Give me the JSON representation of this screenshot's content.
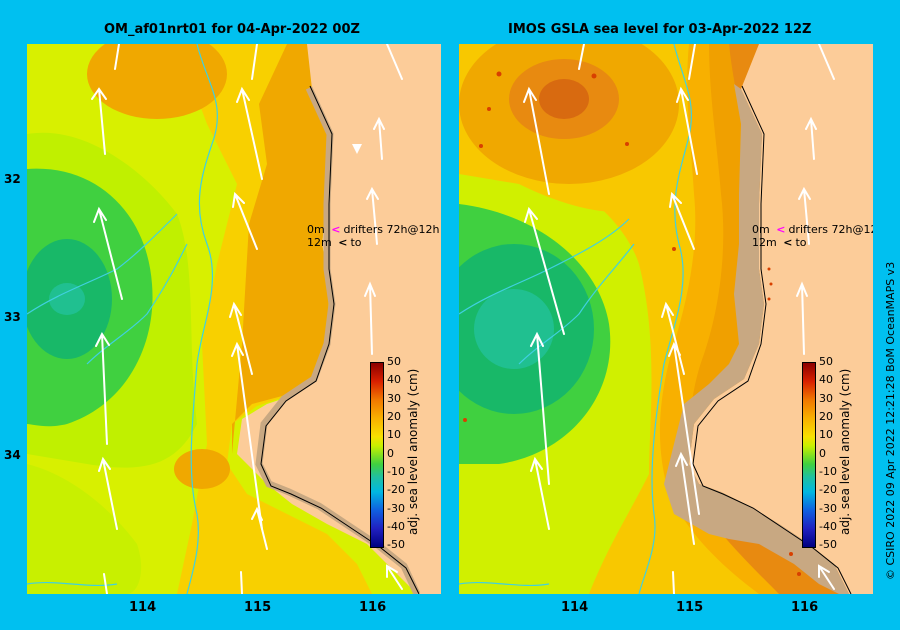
{
  "titles": {
    "left": "OM_af01nrt01 for 04-Apr-2022 00Z",
    "right": "IMOS GSLA sea level  for 03-Apr-2022 12Z"
  },
  "lat_labels": [
    "32",
    "33",
    "34"
  ],
  "lon_labels": [
    "114",
    "115",
    "116"
  ],
  "legend": {
    "row1_depth": "0m",
    "row1_marker": "<",
    "row1_text": "drifters 72h@12h",
    "row2_depth": "12m",
    "row2_marker": "<",
    "row2_text": "to",
    "row1_marker_color": "#ff00ff",
    "row2_marker_color": "#000000"
  },
  "colorbar": {
    "ticks": [
      "50",
      "40",
      "30",
      "20",
      "10",
      "0",
      "-10",
      "-20",
      "-30",
      "-40",
      "-50"
    ],
    "label": "adj. sea level anomaly (cm)",
    "range": [
      -50,
      50
    ]
  },
  "credit": "© CSIRO 2022   09 Apr 2022 12:21:28 BoM OceanMAPS v3",
  "palette": {
    "page_bg": "#00c0f0",
    "land": "#fccc99",
    "shelf": "#c8a882",
    "orange_hi": "#e06a10",
    "orange": "#f0a000",
    "yellow_orange": "#f8c000",
    "yellow": "#f0e000",
    "yellow_green": "#c8f000",
    "green": "#40d040",
    "green_deep": "#10b060",
    "teal": "#20c090",
    "river_cyan": "#40d0e0"
  },
  "icons": [
    "current-arrow",
    "drifter-dot",
    "coastline",
    "river"
  ]
}
